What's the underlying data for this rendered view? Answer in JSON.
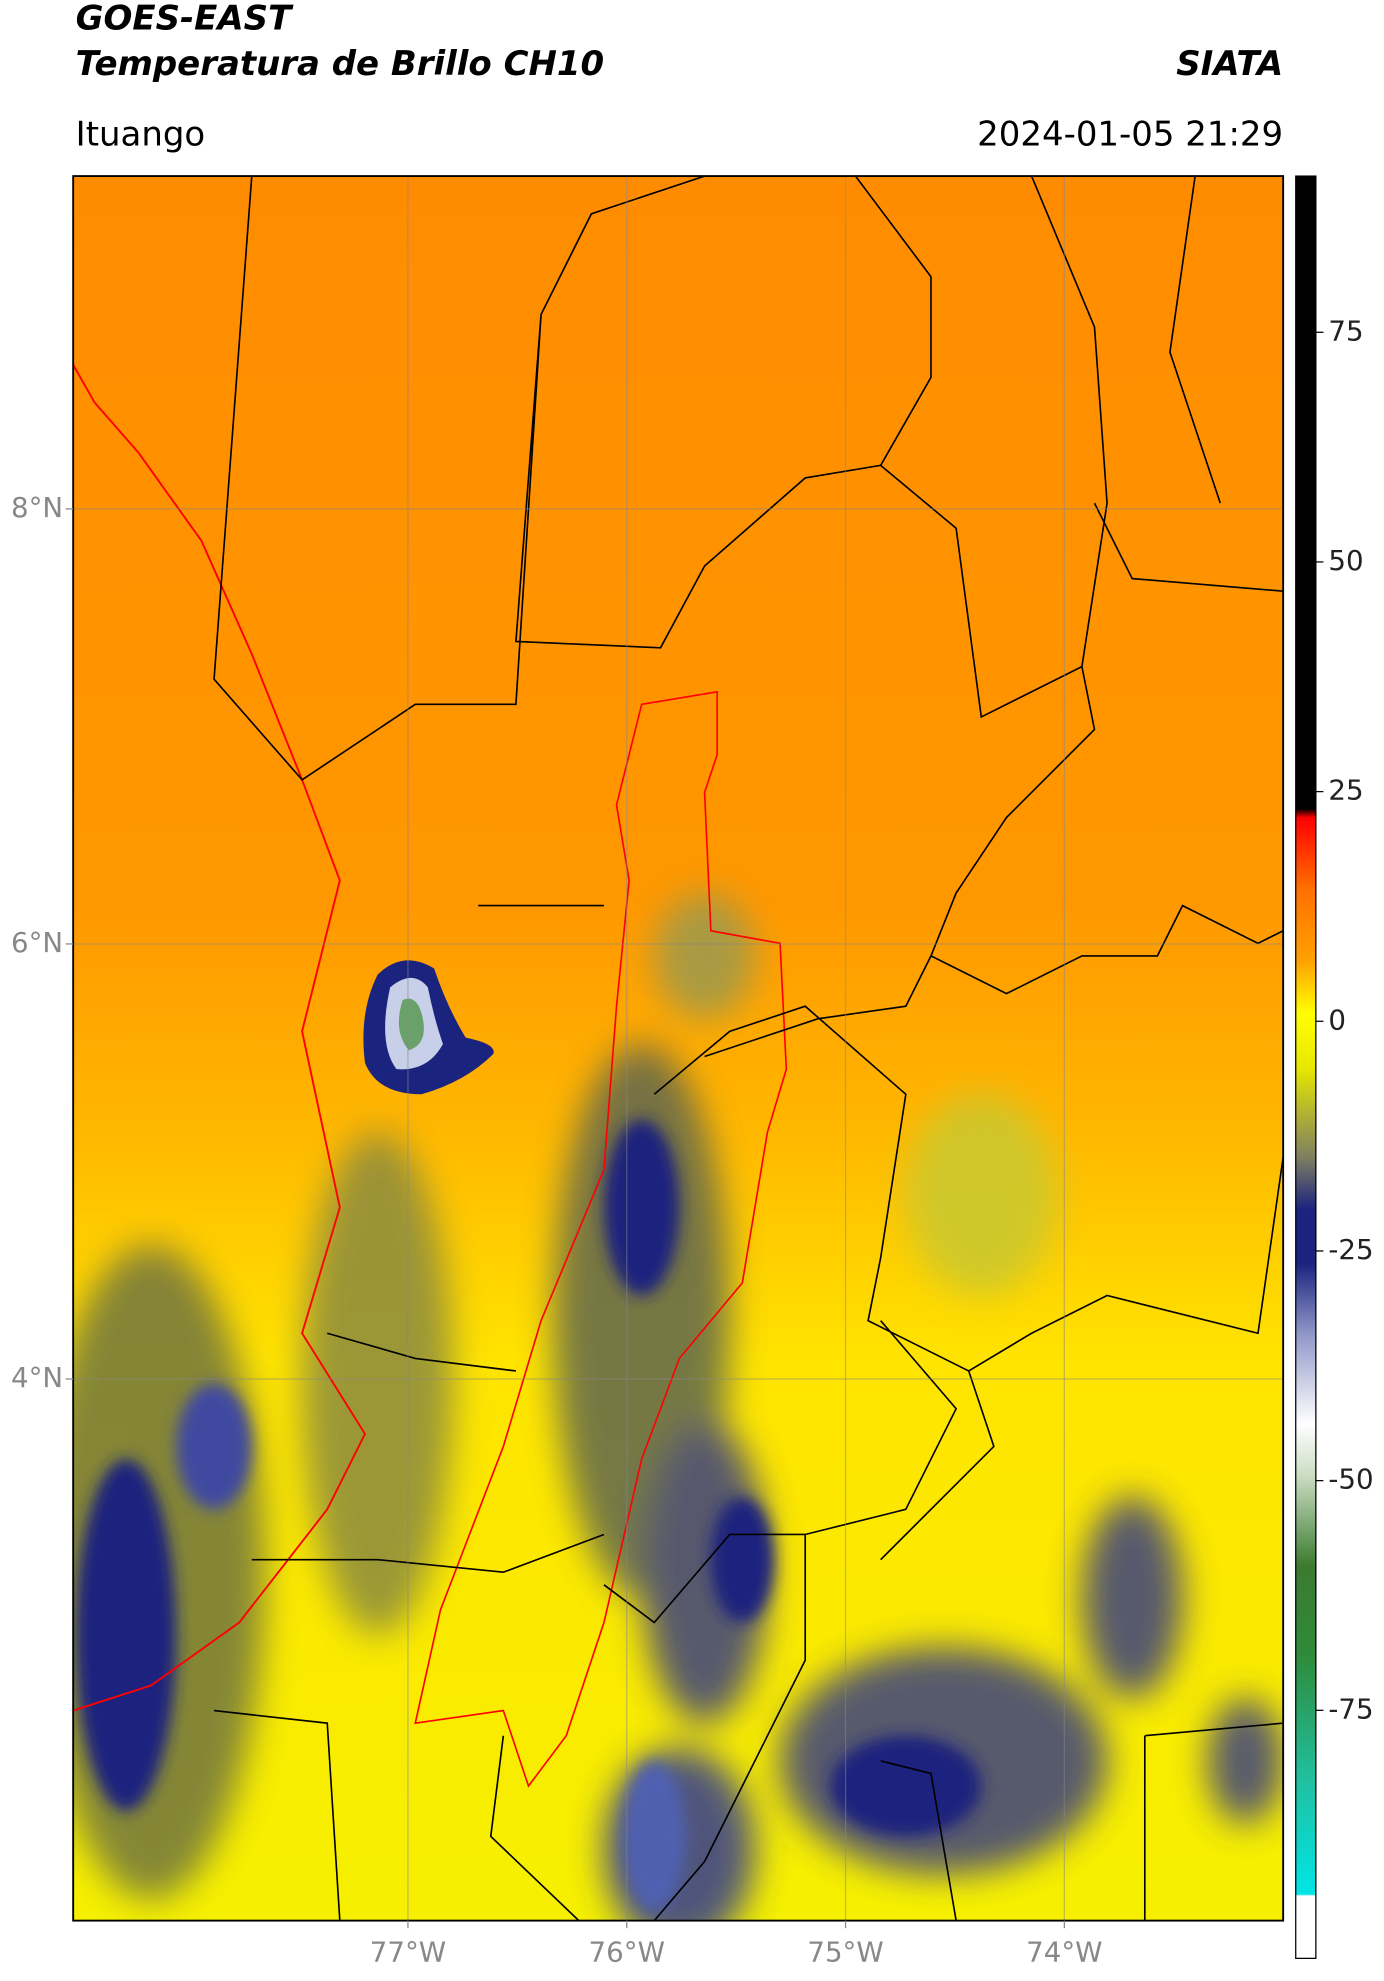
{
  "header": {
    "title": "GOES-EAST",
    "subtitle": "Temperatura de Brillo CH10",
    "agency": "SIATA",
    "location": "Ituango",
    "datetime": "2024-01-05 21:29"
  },
  "map": {
    "xlim": [
      -78.53,
      -73.0
    ],
    "ylim": [
      1.51,
      9.53
    ],
    "xticks": [
      {
        "value": -77,
        "label": "77°W"
      },
      {
        "value": -76,
        "label": "76°W"
      },
      {
        "value": -75,
        "label": "75°W"
      },
      {
        "value": -74,
        "label": "74°W"
      }
    ],
    "yticks": [
      {
        "value": 8,
        "label": "8°N"
      },
      {
        "value": 6,
        "label": "6°N"
      },
      {
        "value": 4,
        "label": "4°N"
      }
    ]
  },
  "colorbar": {
    "lim": [
      -102,
      92
    ],
    "ticks": [
      75,
      50,
      25,
      0,
      -25,
      -50,
      -75
    ]
  }
}
